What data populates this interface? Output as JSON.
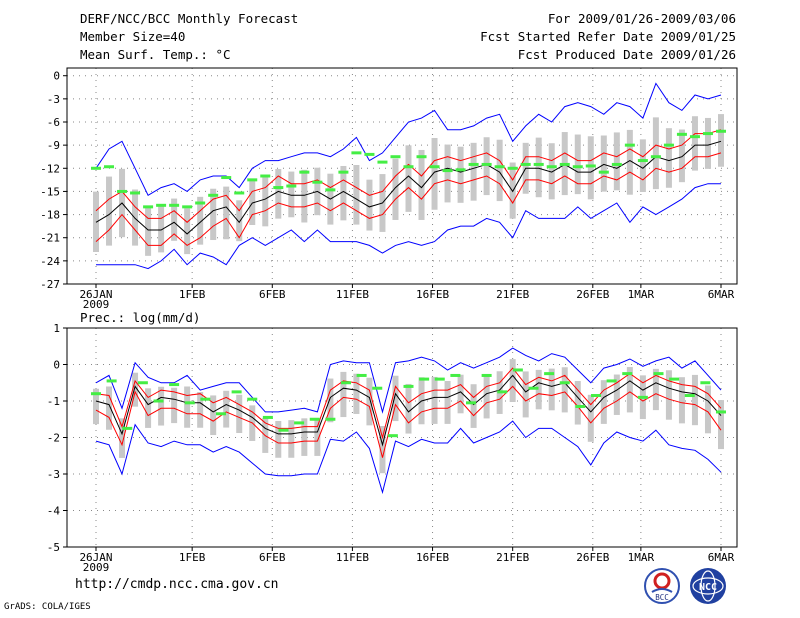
{
  "header": {
    "title": "DERF/NCC/BCC Monthly Forecast",
    "member_size": "Member Size=40",
    "variable": "Mean Surf. Temp.: °C",
    "period": "For 2009/01/26-2009/03/06",
    "started": "Fcst Started Refer Date 2009/01/25",
    "produced": "Fcst Produced Date 2009/01/26"
  },
  "footer": {
    "url": "http://cmdp.ncc.cma.gov.cn",
    "credit": "GrADS: COLA/IGES",
    "logo_left_text": "BCC",
    "logo_right_text": "NCC"
  },
  "colors": {
    "box": "#c8c8c8",
    "mean": "#000000",
    "inner": "#ff0000",
    "outer": "#0000ff",
    "marker": "#44ee44"
  },
  "chart_data": [
    {
      "type": "line",
      "title": "Mean Surf. Temp.: °C",
      "x_tick_labels": [
        "26JAN",
        "1FEB",
        "6FEB",
        "11FEB",
        "16FEB",
        "21FEB",
        "26FEB",
        "1MAR",
        "6MAR"
      ],
      "x_tick_days": [
        0,
        6,
        11,
        16,
        21,
        26,
        31,
        34,
        39
      ],
      "x_sublabel": "2009",
      "ylim": [
        -27,
        1
      ],
      "y_ticks": [
        0,
        -3,
        -6,
        -9,
        -12,
        -15,
        -18,
        -21,
        -24,
        -27
      ],
      "series": [
        {
          "name": "ensemble mean",
          "values": [
            -19,
            -18,
            -16.5,
            -18.5,
            -20,
            -20,
            -19,
            -20.5,
            -19,
            -17.5,
            -17,
            -19,
            -16.5,
            -16,
            -15,
            -15.5,
            -15.5,
            -15,
            -16,
            -15,
            -16,
            -17,
            -16.5,
            -14.5,
            -13,
            -14.5,
            -12.5,
            -12,
            -12.5,
            -12,
            -11.5,
            -12.5,
            -15,
            -12,
            -12,
            -12.5,
            -11.5,
            -12.5,
            -12.5,
            -11.5,
            -12,
            -11,
            -12,
            -10.5,
            -11,
            -10.5,
            -9,
            -9,
            -8.5
          ]
        },
        {
          "name": "upper band",
          "values": [
            -17.5,
            -16,
            -15,
            -17,
            -18.5,
            -18.5,
            -17.5,
            -19,
            -17.5,
            -16,
            -15.5,
            -17.5,
            -15,
            -14.5,
            -13,
            -14,
            -14,
            -13.5,
            -14.5,
            -13.5,
            -14.5,
            -15.5,
            -15,
            -13,
            -11.5,
            -13,
            -11,
            -10.5,
            -11,
            -10.5,
            -10,
            -11,
            -13.5,
            -10.5,
            -10.5,
            -11,
            -10,
            -11,
            -11,
            -10,
            -10.5,
            -9.5,
            -10.5,
            -9,
            -9.5,
            -9,
            -7.5,
            -7.5,
            -7
          ]
        },
        {
          "name": "lower band",
          "values": [
            -21.5,
            -20,
            -18,
            -20,
            -22,
            -22,
            -20.5,
            -22,
            -21,
            -19.5,
            -18.5,
            -21,
            -18,
            -17.5,
            -16.5,
            -17,
            -17,
            -16.5,
            -17.5,
            -16.5,
            -17.5,
            -18.5,
            -18,
            -16,
            -14.5,
            -16,
            -14,
            -13.5,
            -14,
            -13.5,
            -13,
            -14,
            -16.5,
            -13.5,
            -13.5,
            -14,
            -13,
            -14,
            -14,
            -13,
            -13.5,
            -12.5,
            -13.5,
            -12,
            -12.5,
            -12,
            -10.5,
            -10.5,
            -10
          ]
        },
        {
          "name": "maximum",
          "values": [
            -12,
            -9.5,
            -8.5,
            -12,
            -15.5,
            -14.5,
            -14,
            -15,
            -13.5,
            -13,
            -13,
            -14.5,
            -12,
            -11,
            -11,
            -10.5,
            -10,
            -10,
            -10.5,
            -9.5,
            -8,
            -11,
            -10,
            -8,
            -6,
            -5.5,
            -4.5,
            -7,
            -7,
            -6.5,
            -5.5,
            -5,
            -8.5,
            -6.5,
            -5,
            -6,
            -4,
            -3.5,
            -4,
            -5,
            -3.5,
            -4,
            -5.5,
            -1,
            -3.5,
            -4.5,
            -2.5,
            -3,
            -2.5
          ]
        },
        {
          "name": "minimum",
          "values": [
            -24.5,
            -24.5,
            -24.5,
            -24.5,
            -25,
            -24,
            -22.5,
            -24.5,
            -23,
            -23.5,
            -24.5,
            -22,
            -21,
            -22,
            -21,
            -20,
            -21.5,
            -20,
            -21.5,
            -21.5,
            -21.5,
            -22,
            -23,
            -22,
            -21.5,
            -22,
            -21.5,
            -20,
            -19.5,
            -19.5,
            -18.5,
            -19,
            -21,
            -17.5,
            -18.5,
            -18.5,
            -18.5,
            -17,
            -18.5,
            -17.5,
            -16.5,
            -19,
            -17,
            -18,
            -17,
            -16,
            -14.5,
            -14,
            -14
          ]
        },
        {
          "name": "marker",
          "values": [
            -12,
            -11.8,
            -15,
            -15.2,
            -17,
            -16.8,
            -16.8,
            -17,
            -16.5,
            -15.5,
            -13.2,
            -15.2,
            -13.5,
            -13,
            -14.5,
            -14.3,
            -12.5,
            -13.8,
            -14.8,
            -12.5,
            -10,
            -10.2,
            -11.2,
            -10.5,
            -11.8,
            -10.5,
            -11.8,
            -12.3,
            -12.2,
            -11.5,
            -11.5,
            -11.8,
            -12,
            -11.5,
            -11.5,
            -11.8,
            -11.5,
            -11.8,
            -11.7,
            -12.5,
            -11.5,
            -9,
            -11,
            -10.5,
            -9,
            -7.6,
            -7.9,
            -7.5,
            -7.2
          ]
        }
      ]
    },
    {
      "type": "line",
      "title": "Prec.: log(mm/d)",
      "x_tick_labels": [
        "26JAN",
        "1FEB",
        "6FEB",
        "11FEB",
        "16FEB",
        "21FEB",
        "26FEB",
        "1MAR",
        "6MAR"
      ],
      "x_tick_days": [
        0,
        6,
        11,
        16,
        21,
        26,
        31,
        34,
        39
      ],
      "x_sublabel": "2009",
      "ylim": [
        -5,
        1
      ],
      "y_ticks": [
        1,
        0,
        -1,
        -2,
        -3,
        -4,
        -5
      ],
      "series": [
        {
          "name": "ensemble mean",
          "values": [
            -1,
            -1.1,
            -1.9,
            -0.6,
            -1.1,
            -0.9,
            -0.95,
            -1.05,
            -1.05,
            -1.3,
            -1.1,
            -1.25,
            -1.45,
            -1.75,
            -1.9,
            -1.9,
            -1.85,
            -1.85,
            -0.9,
            -0.65,
            -0.7,
            -0.9,
            -2.2,
            -0.8,
            -1.3,
            -1,
            -0.9,
            -0.9,
            -0.75,
            -1.1,
            -0.8,
            -0.7,
            -0.3,
            -0.75,
            -0.5,
            -0.6,
            -0.5,
            -0.9,
            -1.3,
            -0.9,
            -0.7,
            -0.45,
            -0.7,
            -0.5,
            -0.65,
            -0.75,
            -0.8,
            -1,
            -1.4
          ]
        },
        {
          "name": "upper band",
          "values": [
            -0.8,
            -0.85,
            -1.7,
            -0.45,
            -0.9,
            -0.7,
            -0.75,
            -0.85,
            -0.8,
            -1.05,
            -0.9,
            -1.1,
            -1.3,
            -1.6,
            -1.75,
            -1.75,
            -1.7,
            -1.7,
            -0.7,
            -0.45,
            -0.5,
            -0.7,
            -2,
            -0.6,
            -1.05,
            -0.8,
            -0.7,
            -0.7,
            -0.55,
            -0.9,
            -0.6,
            -0.5,
            -0.1,
            -0.55,
            -0.35,
            -0.45,
            -0.3,
            -0.7,
            -1.1,
            -0.7,
            -0.5,
            -0.25,
            -0.5,
            -0.3,
            -0.45,
            -0.55,
            -0.6,
            -0.8,
            -1.2
          ]
        },
        {
          "name": "lower band",
          "values": [
            -1.25,
            -1.45,
            -2.2,
            -0.75,
            -1.4,
            -1.2,
            -1.2,
            -1.35,
            -1.35,
            -1.55,
            -1.3,
            -1.45,
            -1.6,
            -1.95,
            -2.15,
            -2.15,
            -2.1,
            -2.1,
            -1.2,
            -0.9,
            -0.95,
            -1.15,
            -2.55,
            -1.1,
            -1.6,
            -1.3,
            -1.2,
            -1.2,
            -1,
            -1.4,
            -1.05,
            -0.95,
            -0.6,
            -1,
            -0.8,
            -0.85,
            -0.75,
            -1.15,
            -1.6,
            -1.2,
            -1,
            -0.75,
            -1,
            -0.8,
            -0.95,
            -1.05,
            -1.1,
            -1.3,
            -1.8
          ]
        },
        {
          "name": "maximum",
          "values": [
            -0.5,
            -0.3,
            -1.2,
            0.05,
            -0.35,
            -0.5,
            -0.5,
            -0.3,
            -0.7,
            -0.6,
            -0.5,
            -0.5,
            -0.9,
            -1.3,
            -1.3,
            -1.25,
            -1.2,
            -1.3,
            0,
            0.1,
            0.05,
            0.05,
            -1.3,
            0.05,
            0.1,
            0.2,
            0.1,
            -0.15,
            0.05,
            -0.1,
            0.05,
            0.2,
            0.45,
            0.25,
            0.1,
            0.3,
            0.2,
            -0.15,
            -0.5,
            -0.1,
            0,
            0.15,
            -0.05,
            0.1,
            0.2,
            -0.1,
            0.1,
            -0.3,
            -0.7
          ]
        },
        {
          "name": "minimum",
          "values": [
            -2.1,
            -2.2,
            -3,
            -1.65,
            -2.15,
            -2.25,
            -2.1,
            -2.2,
            -2.2,
            -2.4,
            -2.25,
            -2.4,
            -2.7,
            -3,
            -3.05,
            -3.05,
            -3,
            -3,
            -2.05,
            -2.1,
            -1.85,
            -2.3,
            -3.5,
            -2.1,
            -2.25,
            -2.05,
            -2.15,
            -2.15,
            -1.75,
            -2.15,
            -2,
            -1.85,
            -1.55,
            -2,
            -1.75,
            -1.75,
            -2,
            -2.25,
            -2.75,
            -2.15,
            -1.85,
            -2,
            -2.1,
            -1.8,
            -2.2,
            -2.3,
            -2.35,
            -2.6,
            -2.95
          ]
        },
        {
          "name": "marker",
          "values": [
            -0.8,
            -0.45,
            -1.75,
            -0.5,
            -1,
            -0.55,
            -1.05,
            -0.95,
            -1.35,
            -0.75,
            -0.95,
            -1.45,
            -1.8,
            -1.6,
            -1.5,
            -1.5,
            -0.5,
            -0.3,
            -0.65,
            -1.95,
            -0.6,
            -0.4,
            -0.4,
            -0.3,
            -1.05,
            -0.3,
            -0.75,
            -0.15,
            -0.65,
            -0.25,
            -0.5,
            -1.15,
            -0.85,
            -0.45,
            -0.25,
            -0.9,
            -0.25,
            -0.4,
            -0.85,
            -0.5,
            -1.3
          ]
        }
      ]
    }
  ]
}
